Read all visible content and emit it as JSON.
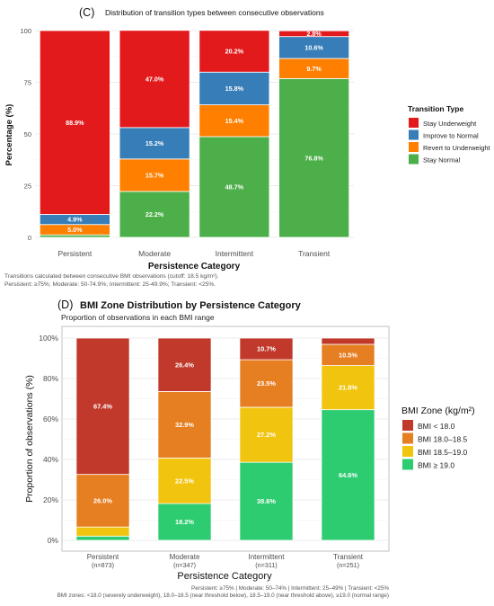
{
  "colors": {
    "stay_underweight": "#e31a1c",
    "improve_to_normal": "#377eb8",
    "revert_to_underweight": "#ff7f00",
    "stay_normal": "#4daf4a",
    "bmi_lt18": "#c0392b",
    "bmi_18_185": "#e67e22",
    "bmi_185_19": "#f1c40f",
    "bmi_ge19": "#2ecc71",
    "grid": "#e5e5e5",
    "axis_text": "#4d4d4d"
  },
  "chart_data": [
    {
      "type": "bar",
      "stacked": true,
      "panel_label": "(C)",
      "title": "Distribution of transition types between consecutive observations",
      "xlabel": "Persistence Category",
      "ylabel": "Percentage (%)",
      "ylim": [
        0,
        100
      ],
      "yticks": [
        0,
        25,
        50,
        75,
        100
      ],
      "grid": true,
      "legend_position": "right",
      "legend_title": "Transition Type",
      "categories": [
        "Persistent",
        "Moderate",
        "Intermittent",
        "Transient"
      ],
      "series": [
        {
          "name": "Stay Normal",
          "color_key": "stay_normal",
          "values": [
            1.2,
            22.2,
            48.7,
            76.8
          ],
          "labels": [
            "",
            "22.2%",
            "48.7%",
            "76.8%"
          ]
        },
        {
          "name": "Revert to Underweight",
          "color_key": "revert_to_underweight",
          "values": [
            5.0,
            15.7,
            15.4,
            9.7
          ],
          "labels": [
            "5.0%",
            "15.7%",
            "15.4%",
            "9.7%"
          ]
        },
        {
          "name": "Improve to Normal",
          "color_key": "improve_to_normal",
          "values": [
            4.9,
            15.2,
            15.8,
            10.6
          ],
          "labels": [
            "4.9%",
            "15.2%",
            "15.8%",
            "10.6%"
          ]
        },
        {
          "name": "Stay Underweight",
          "color_key": "stay_underweight",
          "values": [
            88.9,
            47.0,
            20.2,
            2.8
          ],
          "labels": [
            "88.9%",
            "47.0%",
            "20.2%",
            "2.8%"
          ]
        }
      ],
      "legend_order": [
        "Stay Underweight",
        "Improve to Normal",
        "Revert to Underweight",
        "Stay Normal"
      ],
      "caption": [
        "Transitions calculated between consecutive BMI observations (cutoff: 18.5 kg/m²).",
        "Persistent: ≥75%; Moderate: 50-74.9%; Intermittent: 25-49.9%; Transient: <25%."
      ]
    },
    {
      "type": "bar",
      "stacked": true,
      "panel_label": "(D)",
      "title": "BMI Zone Distribution by Persistence Category",
      "subtitle": "Proportion of observations in each BMI range",
      "xlabel": "Persistence Category",
      "ylabel": "Proportion of observations (%)",
      "ylim": [
        0,
        100
      ],
      "yticks": [
        0,
        20,
        40,
        60,
        80,
        100
      ],
      "ytick_labels": [
        "0%",
        "20%",
        "40%",
        "60%",
        "80%",
        "100%"
      ],
      "grid": true,
      "legend_position": "right",
      "legend_title": "BMI Zone (kg/m²)",
      "categories": [
        "Persistent",
        "Moderate",
        "Intermittent",
        "Transient"
      ],
      "category_sublabels": [
        "(n=873)",
        "(n=347)",
        "(n=311)",
        "(n=251)"
      ],
      "series": [
        {
          "name": "BMI ≥ 19.0",
          "color_key": "bmi_ge19",
          "values": [
            2.1,
            18.2,
            38.6,
            64.6
          ],
          "labels": [
            "",
            "18.2%",
            "38.6%",
            "64.6%"
          ]
        },
        {
          "name": "BMI 18.5–19.0",
          "color_key": "bmi_185_19",
          "values": [
            4.5,
            22.5,
            27.2,
            21.8
          ],
          "labels": [
            "",
            "22.5%",
            "27.2%",
            "21.8%"
          ]
        },
        {
          "name": "BMI 18.0–18.5",
          "color_key": "bmi_18_185",
          "values": [
            26.0,
            32.9,
            23.5,
            10.5
          ],
          "labels": [
            "26.0%",
            "32.9%",
            "23.5%",
            "10.5%"
          ]
        },
        {
          "name": "BMI < 18.0",
          "color_key": "bmi_lt18",
          "values": [
            67.4,
            26.4,
            10.7,
            3.1
          ],
          "labels": [
            "67.4%",
            "26.4%",
            "10.7%",
            ""
          ]
        }
      ],
      "legend_order": [
        "BMI < 18.0",
        "BMI 18.0–18.5",
        "BMI 18.5–19.0",
        "BMI ≥ 19.0"
      ],
      "caption": [
        "Persistent: ≥75%  |  Moderate: 50–74%  |  Intermittent: 25–49%  |  Transient: <25%",
        "BMI zones: <18.0 (severely underweight), 18.0–18.5 (near threshold below), 18.5–19.0 (near threshold above), ≥19.0 (normal range)"
      ]
    }
  ]
}
